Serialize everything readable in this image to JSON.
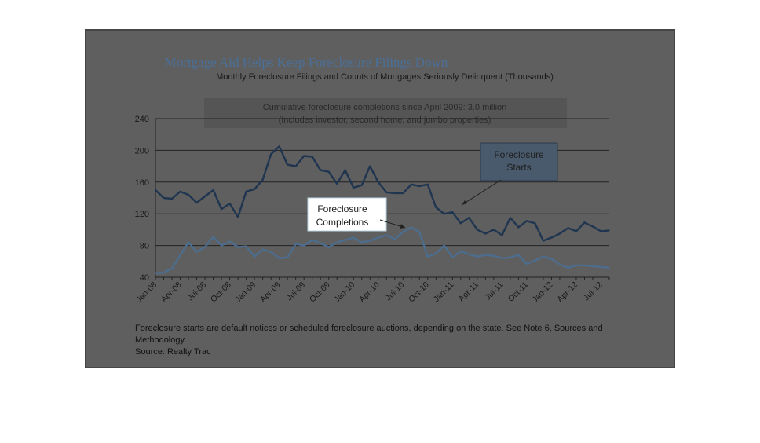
{
  "chart_data": {
    "type": "line",
    "title": "Mortgage Aid Helps Keep Foreclosure Filings Down",
    "subtitle": "Monthly Foreclosure Filings and Counts of Mortgages Seriously Delinquent (Thousands)",
    "annotation": [
      "Cumulative foreclosure completions since April 2009: 3.0 million",
      "(Includes investor, second home, and jumbo properties)"
    ],
    "ylim": [
      40,
      240
    ],
    "yticks": [
      "40",
      "80",
      "120",
      "160",
      "200",
      "240"
    ],
    "grid": true,
    "categories": [
      "Jan-08",
      "Feb-08",
      "Mar-08",
      "Apr-08",
      "May-08",
      "Jun-08",
      "Jul-08",
      "Aug-08",
      "Sep-08",
      "Oct-08",
      "Nov-08",
      "Dec-08",
      "Jan-09",
      "Feb-09",
      "Mar-09",
      "Apr-09",
      "May-09",
      "Jun-09",
      "Jul-09",
      "Aug-09",
      "Sep-09",
      "Oct-09",
      "Nov-09",
      "Dec-09",
      "Jan-10",
      "Feb-10",
      "Mar-10",
      "Apr-10",
      "May-10",
      "Jun-10",
      "Jul-10",
      "Aug-10",
      "Sep-10",
      "Oct-10",
      "Nov-10",
      "Dec-10",
      "Jan-11",
      "Feb-11",
      "Mar-11",
      "Apr-11",
      "May-11",
      "Jun-11",
      "Jul-11",
      "Aug-11",
      "Sep-11",
      "Oct-11",
      "Nov-11",
      "Dec-11",
      "Jan-12",
      "Feb-12",
      "Mar-12",
      "Apr-12",
      "May-12",
      "Jun-12",
      "Jul-12",
      "Aug-12"
    ],
    "xtick_labels": [
      "Jan-08",
      "Apr-08",
      "Jul-08",
      "Oct-08",
      "Jan-09",
      "Apr-09",
      "Jul-09",
      "Oct-09",
      "Jan-10",
      "Apr-10",
      "Jul-10",
      "Oct-10",
      "Jan-11",
      "Apr-11",
      "Jul-11",
      "Oct-11",
      "Jan-12",
      "Apr-12",
      "Jul-12"
    ],
    "series": [
      {
        "name": "Foreclosure Starts",
        "color": "#1f3550",
        "values": [
          150,
          140,
          139,
          148,
          144,
          134,
          142,
          150,
          126,
          133,
          116,
          148,
          151,
          163,
          195,
          205,
          182,
          180,
          193,
          192,
          175,
          173,
          158,
          175,
          153,
          156,
          180,
          160,
          147,
          146,
          146,
          157,
          155,
          157,
          128,
          120,
          122,
          108,
          115,
          100,
          95,
          100,
          93,
          115,
          103,
          111,
          108,
          86,
          90,
          95,
          102,
          98,
          109,
          104,
          98,
          99
        ]
      },
      {
        "name": "Foreclosure Completions",
        "color": "#4d6d8e",
        "values": [
          45,
          46,
          51,
          68,
          84,
          72,
          78,
          91,
          80,
          85,
          78,
          79,
          66,
          75,
          72,
          64,
          65,
          82,
          80,
          87,
          83,
          78,
          84,
          87,
          90,
          84,
          86,
          90,
          93,
          88,
          97,
          103,
          97,
          66,
          70,
          80,
          65,
          73,
          69,
          66,
          68,
          67,
          64,
          65,
          68,
          57,
          61,
          66,
          63,
          56,
          52,
          55,
          55,
          54,
          53,
          52
        ]
      }
    ],
    "callouts": {
      "starts": [
        "Foreclosure",
        "Starts"
      ],
      "completions": [
        "Foreclosure",
        "Completions"
      ]
    },
    "footnote": [
      "Foreclosure starts are default notices or scheduled foreclosure auctions, depending on the state. See Note 6, Sources and Methodology.",
      "Source: Realty Trac"
    ]
  }
}
